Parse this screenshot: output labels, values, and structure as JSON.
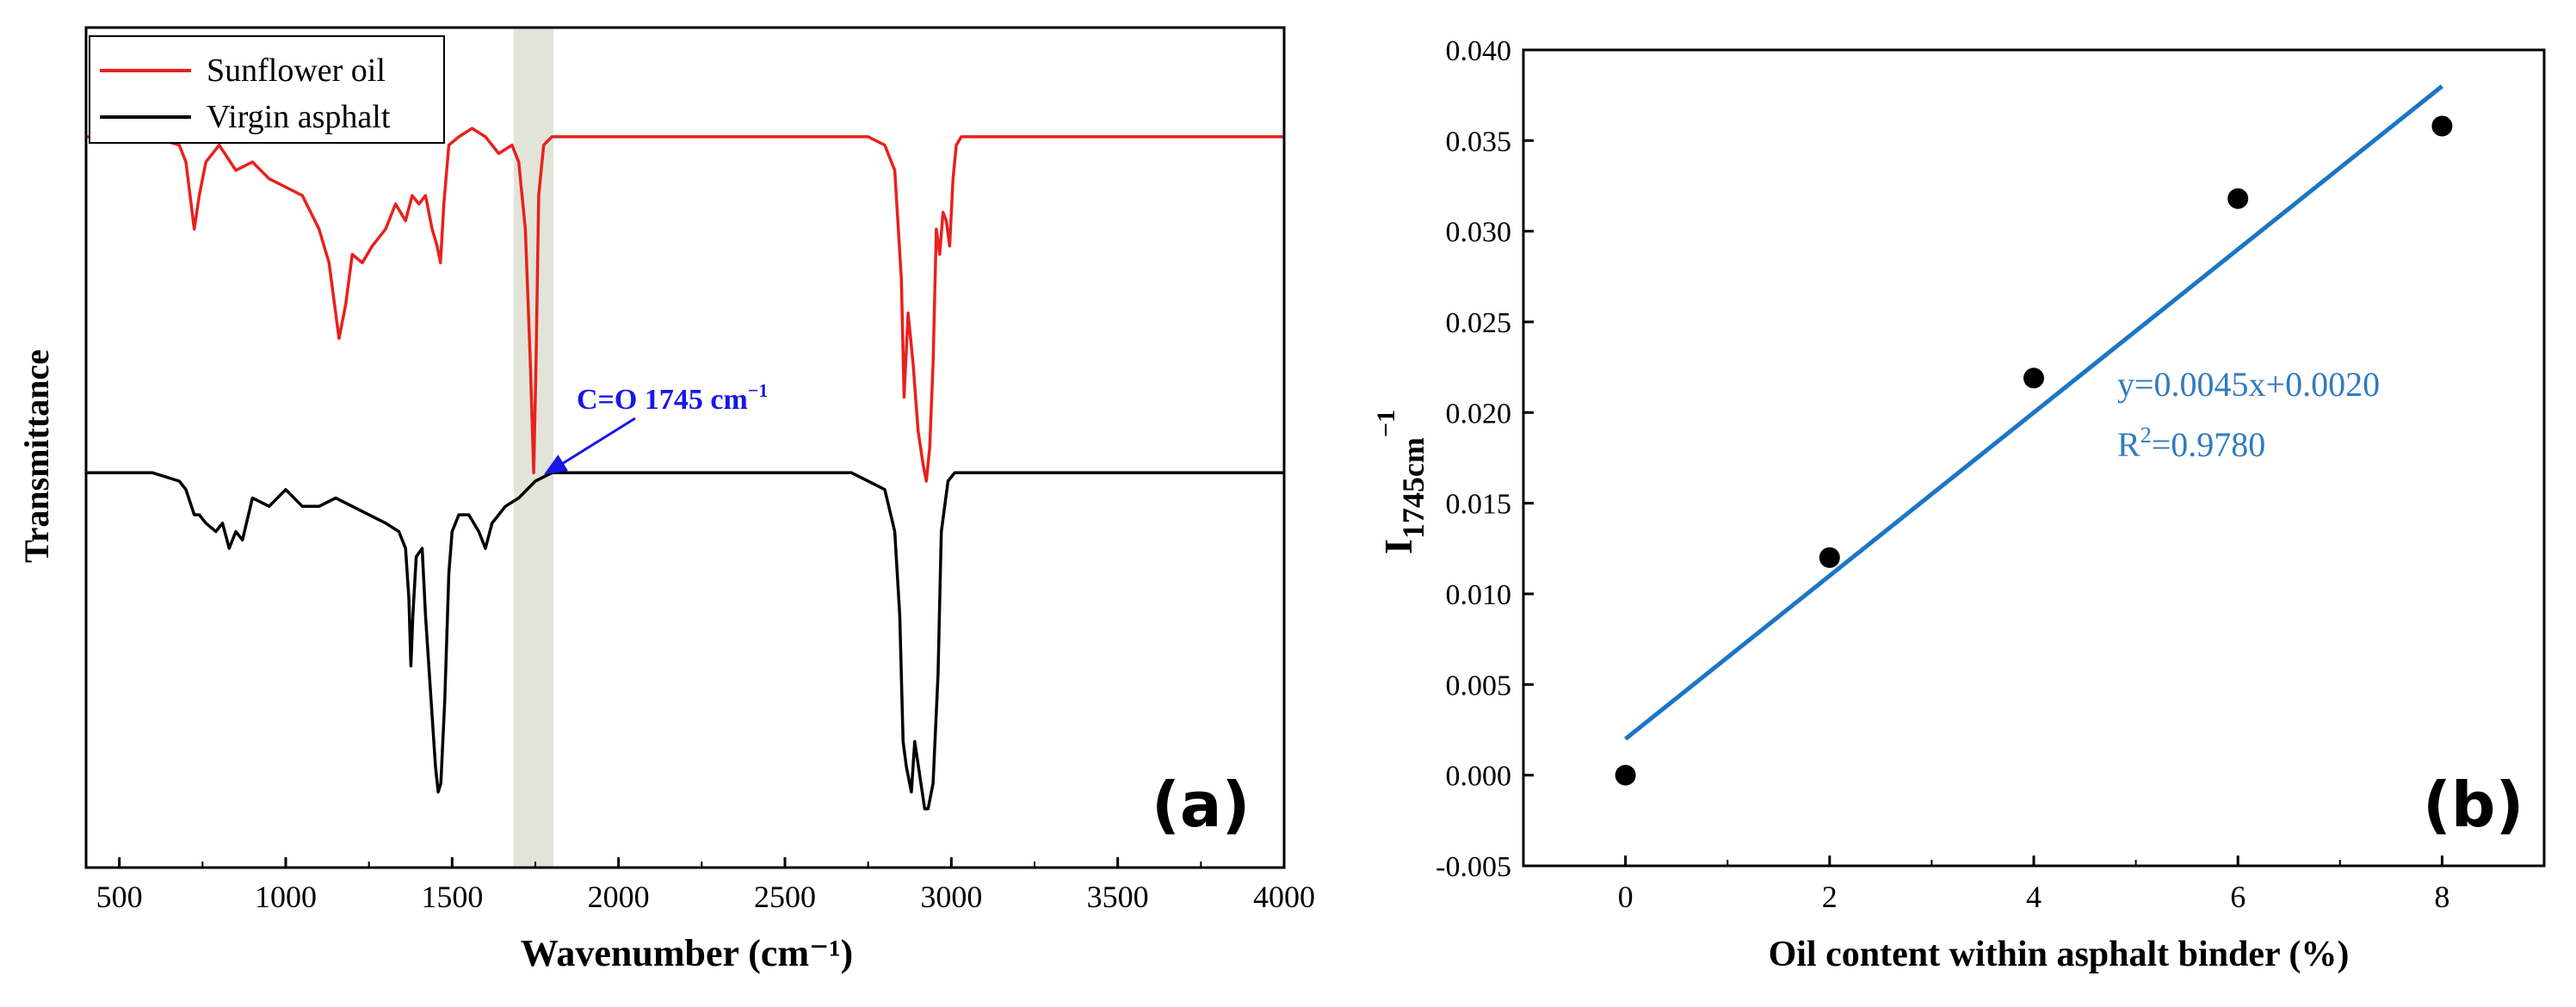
{
  "chart_data": [
    {
      "panel": "(a)",
      "type": "line",
      "title": "",
      "xlabel": "Wavenumber (cm⁻¹)",
      "ylabel": "Transmittance",
      "xlim": [
        400,
        4000
      ],
      "xticks": [
        500,
        1000,
        1500,
        2000,
        2500,
        3000,
        3500,
        4000
      ],
      "ylim": [
        0,
        1
      ],
      "y_ticks_shown": false,
      "legend_position": "top-left",
      "highlight_band": [
        1685,
        1805
      ],
      "annotation": {
        "text": "C=O 1745 cm",
        "superscript": "−1",
        "points_to": [
          1745,
          0.47
        ]
      },
      "series": [
        {
          "name": "Sunflower oil",
          "color": "#e8211c",
          "x": [
            400,
            600,
            680,
            700,
            725,
            740,
            760,
            800,
            850,
            900,
            950,
            1000,
            1050,
            1100,
            1130,
            1160,
            1180,
            1200,
            1230,
            1260,
            1300,
            1330,
            1360,
            1380,
            1400,
            1420,
            1440,
            1455,
            1465,
            1475,
            1490,
            1520,
            1560,
            1600,
            1640,
            1680,
            1700,
            1720,
            1735,
            1745,
            1752,
            1760,
            1775,
            1800,
            1900,
            2000,
            2500,
            2750,
            2800,
            2830,
            2850,
            2858,
            2870,
            2885,
            2900,
            2915,
            2925,
            2935,
            2945,
            2955,
            2965,
            2975,
            2985,
            2995,
            3005,
            3015,
            3030,
            3060,
            3200,
            4000
          ],
          "y": [
            0.87,
            0.87,
            0.86,
            0.84,
            0.76,
            0.8,
            0.84,
            0.86,
            0.83,
            0.84,
            0.82,
            0.81,
            0.8,
            0.76,
            0.72,
            0.63,
            0.67,
            0.73,
            0.72,
            0.74,
            0.76,
            0.79,
            0.77,
            0.8,
            0.79,
            0.8,
            0.76,
            0.74,
            0.72,
            0.79,
            0.86,
            0.87,
            0.88,
            0.87,
            0.85,
            0.86,
            0.84,
            0.76,
            0.6,
            0.47,
            0.6,
            0.8,
            0.86,
            0.87,
            0.87,
            0.87,
            0.87,
            0.87,
            0.86,
            0.83,
            0.7,
            0.56,
            0.66,
            0.6,
            0.52,
            0.48,
            0.46,
            0.5,
            0.6,
            0.76,
            0.73,
            0.78,
            0.77,
            0.74,
            0.82,
            0.86,
            0.87,
            0.87,
            0.87,
            0.87
          ]
        },
        {
          "name": "Virgin asphalt",
          "color": "#000000",
          "x": [
            400,
            600,
            680,
            700,
            725,
            740,
            760,
            790,
            810,
            830,
            850,
            870,
            900,
            950,
            1000,
            1050,
            1100,
            1150,
            1200,
            1250,
            1300,
            1340,
            1360,
            1370,
            1376,
            1382,
            1392,
            1410,
            1420,
            1440,
            1450,
            1458,
            1466,
            1478,
            1490,
            1500,
            1520,
            1550,
            1580,
            1600,
            1620,
            1660,
            1700,
            1750,
            1800,
            1900,
            2000,
            2500,
            2700,
            2750,
            2800,
            2830,
            2845,
            2855,
            2865,
            2880,
            2890,
            2905,
            2920,
            2930,
            2945,
            2960,
            2970,
            2990,
            3010,
            3050,
            3200,
            4000
          ],
          "y": [
            0.47,
            0.47,
            0.46,
            0.45,
            0.42,
            0.42,
            0.41,
            0.4,
            0.41,
            0.38,
            0.4,
            0.39,
            0.44,
            0.43,
            0.45,
            0.43,
            0.43,
            0.44,
            0.43,
            0.42,
            0.41,
            0.4,
            0.38,
            0.32,
            0.24,
            0.3,
            0.37,
            0.38,
            0.3,
            0.18,
            0.12,
            0.09,
            0.1,
            0.2,
            0.35,
            0.4,
            0.42,
            0.42,
            0.4,
            0.38,
            0.41,
            0.43,
            0.44,
            0.46,
            0.47,
            0.47,
            0.47,
            0.47,
            0.47,
            0.46,
            0.45,
            0.4,
            0.3,
            0.15,
            0.12,
            0.09,
            0.15,
            0.11,
            0.07,
            0.07,
            0.1,
            0.23,
            0.4,
            0.46,
            0.47,
            0.47,
            0.47,
            0.47
          ]
        }
      ]
    },
    {
      "panel": "(b)",
      "type": "scatter",
      "title": "",
      "xlabel": "Oil content within asphalt binder (%)",
      "ylabel_main": "I",
      "ylabel_sub": "1745cm",
      "ylabel_sup": "−1",
      "xlim": [
        -1,
        9
      ],
      "xticks": [
        0,
        2,
        4,
        6,
        8
      ],
      "ylim": [
        -0.005,
        0.04
      ],
      "yticks": [
        "-0.005",
        "0.000",
        "0.005",
        "0.010",
        "0.015",
        "0.020",
        "0.025",
        "0.030",
        "0.035",
        "0.040"
      ],
      "points": {
        "x": [
          0,
          2,
          4,
          6,
          8
        ],
        "y": [
          0.0,
          0.012,
          0.0219,
          0.0318,
          0.0358
        ]
      },
      "fit": {
        "slope": 0.0045,
        "intercept": 0.002,
        "x_range": [
          0,
          8
        ],
        "color": "#1b76c6",
        "equation": "y=0.0045x+0.0020",
        "r2_prefix": "R",
        "r2_sup": "2",
        "r2_value": "=0.9780"
      }
    }
  ]
}
